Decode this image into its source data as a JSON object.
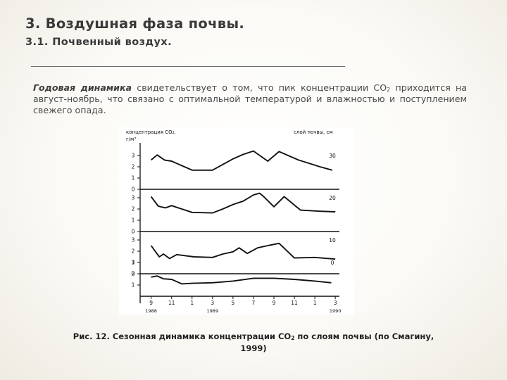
{
  "slide": {
    "title": "3. Воздушная фаза почвы.",
    "subtitle": "3.1. Почвенный воздух.",
    "paragraph": {
      "emphasis": "Годовая динамика",
      "text_before_sub": " свидетельствует о том, что пик концентрации СО",
      "sub": "2",
      "text_after_sub": " приходится на август-ноябрь, что связано с оптимальной температурой и влажностью и поступлением свежего опада."
    },
    "caption": {
      "before_sub": "Рис. 12. Сезонная динамика концентрации СО",
      "sub": "2",
      "after_sub": " по слоям почвы (по Смагину, 1999)"
    }
  },
  "chart_data": {
    "type": "line",
    "y_title_line1": "концентрация СО₂,",
    "y_title_line2": "г/м³",
    "series_title": "слой почвы, см",
    "panel_yticks": [
      "3",
      "2",
      "1",
      "0"
    ],
    "x_tick_labels": [
      "9",
      "11",
      "1",
      "3",
      "5",
      "7",
      "9",
      "11",
      "1",
      "3"
    ],
    "year_labels": [
      {
        "label": "1988",
        "x": 9
      },
      {
        "label": "1989",
        "x": 15
      },
      {
        "label": "1990",
        "x": 27
      }
    ],
    "xlim": [
      8.2,
      27.4
    ],
    "ylim": [
      0,
      3.5
    ],
    "series": [
      {
        "name": "30",
        "points": [
          [
            9,
            2.6
          ],
          [
            9.6,
            3.05
          ],
          [
            10.3,
            2.6
          ],
          [
            11,
            2.5
          ],
          [
            12,
            2.1
          ],
          [
            13,
            1.7
          ],
          [
            15,
            1.7
          ],
          [
            16,
            2.2
          ],
          [
            17,
            2.7
          ],
          [
            18,
            3.1
          ],
          [
            19,
            3.4
          ],
          [
            20.4,
            2.5
          ],
          [
            21.5,
            3.35
          ],
          [
            23.4,
            2.6
          ],
          [
            25.5,
            2.0
          ],
          [
            26.7,
            1.7
          ]
        ]
      },
      {
        "name": "20",
        "points": [
          [
            9,
            3.1
          ],
          [
            9.7,
            2.25
          ],
          [
            10.4,
            2.1
          ],
          [
            11,
            2.3
          ],
          [
            12,
            2.0
          ],
          [
            13,
            1.7
          ],
          [
            15,
            1.65
          ],
          [
            16,
            2.0
          ],
          [
            17,
            2.4
          ],
          [
            18,
            2.7
          ],
          [
            19,
            3.25
          ],
          [
            19.6,
            3.4
          ],
          [
            20,
            3.1
          ],
          [
            21,
            2.2
          ],
          [
            22,
            3.1
          ],
          [
            23.6,
            1.9
          ],
          [
            25.5,
            1.8
          ],
          [
            27,
            1.75
          ]
        ]
      },
      {
        "name": "10",
        "points": [
          [
            9,
            2.5
          ],
          [
            9.4,
            2.0
          ],
          [
            9.8,
            1.5
          ],
          [
            10.2,
            1.75
          ],
          [
            10.8,
            1.35
          ],
          [
            11.5,
            1.7
          ],
          [
            13.2,
            1.5
          ],
          [
            15,
            1.45
          ],
          [
            16,
            1.75
          ],
          [
            17,
            1.95
          ],
          [
            17.6,
            2.3
          ],
          [
            18.4,
            1.8
          ],
          [
            19.4,
            2.3
          ],
          [
            20.4,
            2.5
          ],
          [
            21.5,
            2.7
          ],
          [
            23,
            1.4
          ],
          [
            25,
            1.45
          ],
          [
            27,
            1.3
          ]
        ]
      },
      {
        "name": "0",
        "points": [
          [
            9,
            1.7
          ],
          [
            9.6,
            1.8
          ],
          [
            10.2,
            1.55
          ],
          [
            11,
            1.5
          ],
          [
            12,
            1.1
          ],
          [
            13,
            1.15
          ],
          [
            15,
            1.2
          ],
          [
            17,
            1.35
          ],
          [
            19,
            1.6
          ],
          [
            21,
            1.6
          ],
          [
            23,
            1.5
          ],
          [
            25,
            1.35
          ],
          [
            26.6,
            1.2
          ]
        ]
      }
    ]
  }
}
